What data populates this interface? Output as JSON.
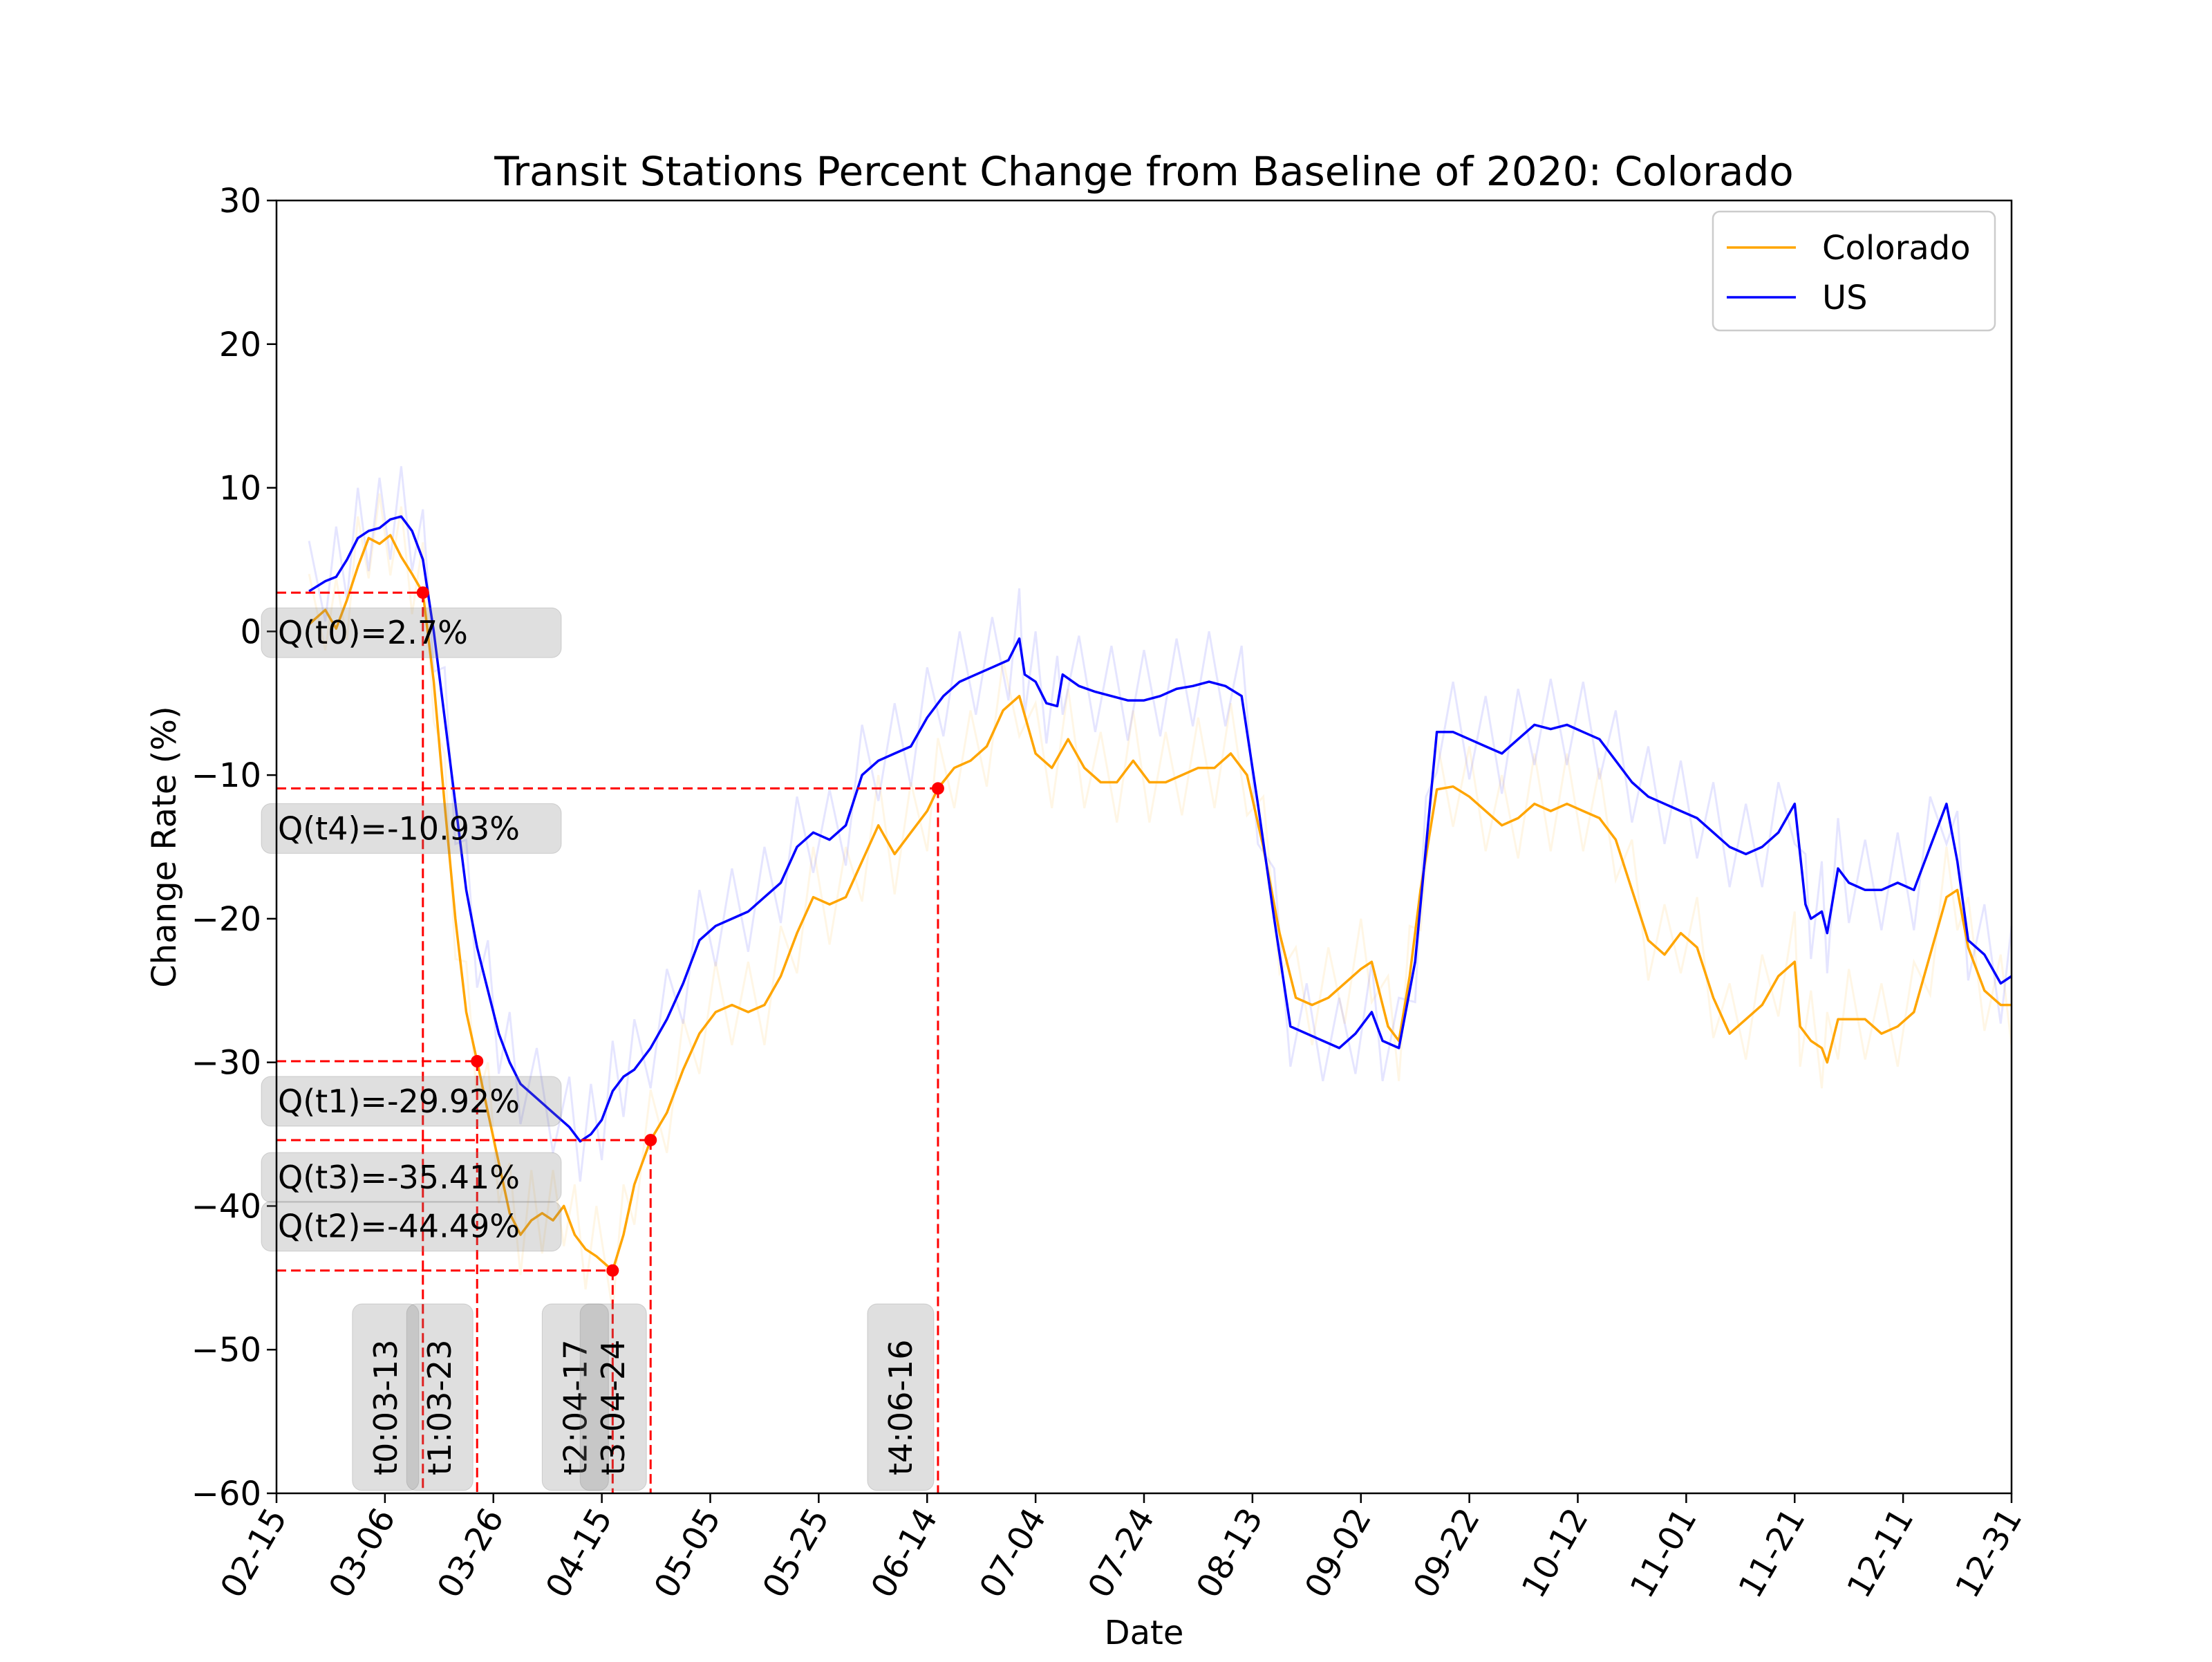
{
  "chart_data": {
    "type": "line",
    "title": "Transit Stations Percent Change from Baseline of 2020: Colorado",
    "xlabel": "Date",
    "ylabel": "Change Rate (%)",
    "xlim": [
      "2020-02-15",
      "2020-12-31"
    ],
    "ylim": [
      -60,
      30
    ],
    "y_ticks": [
      30,
      20,
      10,
      0,
      -10,
      -20,
      -30,
      -40,
      -50,
      -60
    ],
    "x_ticks": [
      {
        "date": "2020-02-15",
        "label": "02-15"
      },
      {
        "date": "2020-03-06",
        "label": "03-06"
      },
      {
        "date": "2020-03-26",
        "label": "03-26"
      },
      {
        "date": "2020-04-15",
        "label": "04-15"
      },
      {
        "date": "2020-05-05",
        "label": "05-05"
      },
      {
        "date": "2020-05-25",
        "label": "05-25"
      },
      {
        "date": "2020-06-14",
        "label": "06-14"
      },
      {
        "date": "2020-07-04",
        "label": "07-04"
      },
      {
        "date": "2020-07-24",
        "label": "07-24"
      },
      {
        "date": "2020-08-13",
        "label": "08-13"
      },
      {
        "date": "2020-09-02",
        "label": "09-02"
      },
      {
        "date": "2020-09-22",
        "label": "09-22"
      },
      {
        "date": "2020-10-12",
        "label": "10-12"
      },
      {
        "date": "2020-11-01",
        "label": "11-01"
      },
      {
        "date": "2020-11-21",
        "label": "11-21"
      },
      {
        "date": "2020-12-11",
        "label": "12-11"
      },
      {
        "date": "2020-12-31",
        "label": "12-31"
      }
    ],
    "grid": false,
    "legend_position": "top-right",
    "series": [
      {
        "name": "Colorado",
        "color": "#ffa500",
        "points": [
          [
            "2020-02-21",
            0.5
          ],
          [
            "2020-02-24",
            1.5
          ],
          [
            "2020-02-26",
            0.2
          ],
          [
            "2020-02-28",
            2.2
          ],
          [
            "2020-03-01",
            4.5
          ],
          [
            "2020-03-03",
            6.5
          ],
          [
            "2020-03-05",
            6.1
          ],
          [
            "2020-03-07",
            6.7
          ],
          [
            "2020-03-09",
            5.2
          ],
          [
            "2020-03-11",
            4.0
          ],
          [
            "2020-03-13",
            2.7
          ],
          [
            "2020-03-15",
            -3.5
          ],
          [
            "2020-03-17",
            -12.0
          ],
          [
            "2020-03-19",
            -20.0
          ],
          [
            "2020-03-21",
            -26.5
          ],
          [
            "2020-03-23",
            -29.92
          ],
          [
            "2020-03-25",
            -33.5
          ],
          [
            "2020-03-27",
            -37.0
          ],
          [
            "2020-03-29",
            -40.5
          ],
          [
            "2020-03-31",
            -42.0
          ],
          [
            "2020-04-02",
            -41.0
          ],
          [
            "2020-04-04",
            -40.5
          ],
          [
            "2020-04-06",
            -41.0
          ],
          [
            "2020-04-08",
            -40.0
          ],
          [
            "2020-04-10",
            -42.0
          ],
          [
            "2020-04-12",
            -43.0
          ],
          [
            "2020-04-14",
            -43.5
          ],
          [
            "2020-04-17",
            -44.49
          ],
          [
            "2020-04-19",
            -42.0
          ],
          [
            "2020-04-21",
            -38.5
          ],
          [
            "2020-04-24",
            -35.41
          ],
          [
            "2020-04-27",
            -33.5
          ],
          [
            "2020-04-30",
            -30.5
          ],
          [
            "2020-05-03",
            -28.0
          ],
          [
            "2020-05-06",
            -26.5
          ],
          [
            "2020-05-09",
            -26.0
          ],
          [
            "2020-05-12",
            -26.5
          ],
          [
            "2020-05-15",
            -26.0
          ],
          [
            "2020-05-18",
            -24.0
          ],
          [
            "2020-05-21",
            -21.0
          ],
          [
            "2020-05-24",
            -18.5
          ],
          [
            "2020-05-27",
            -19.0
          ],
          [
            "2020-05-30",
            -18.5
          ],
          [
            "2020-06-02",
            -16.0
          ],
          [
            "2020-06-05",
            -13.5
          ],
          [
            "2020-06-08",
            -15.5
          ],
          [
            "2020-06-11",
            -14.0
          ],
          [
            "2020-06-14",
            -12.5
          ],
          [
            "2020-06-16",
            -10.93
          ],
          [
            "2020-06-19",
            -9.5
          ],
          [
            "2020-06-22",
            -9.0
          ],
          [
            "2020-06-25",
            -8.0
          ],
          [
            "2020-06-28",
            -5.5
          ],
          [
            "2020-07-01",
            -4.5
          ],
          [
            "2020-07-04",
            -8.5
          ],
          [
            "2020-07-07",
            -9.5
          ],
          [
            "2020-07-10",
            -7.5
          ],
          [
            "2020-07-13",
            -9.5
          ],
          [
            "2020-07-16",
            -10.5
          ],
          [
            "2020-07-19",
            -10.5
          ],
          [
            "2020-07-22",
            -9.0
          ],
          [
            "2020-07-25",
            -10.5
          ],
          [
            "2020-07-28",
            -10.5
          ],
          [
            "2020-07-31",
            -10.0
          ],
          [
            "2020-08-03",
            -9.5
          ],
          [
            "2020-08-06",
            -9.5
          ],
          [
            "2020-08-09",
            -8.5
          ],
          [
            "2020-08-12",
            -10.0
          ],
          [
            "2020-08-15",
            -15.0
          ],
          [
            "2020-08-18",
            -21.0
          ],
          [
            "2020-08-21",
            -25.5
          ],
          [
            "2020-08-24",
            -26.0
          ],
          [
            "2020-08-27",
            -25.5
          ],
          [
            "2020-08-30",
            -24.5
          ],
          [
            "2020-09-02",
            -23.5
          ],
          [
            "2020-09-04",
            -23.0
          ],
          [
            "2020-09-07",
            -27.5
          ],
          [
            "2020-09-09",
            -28.5
          ],
          [
            "2020-09-11",
            -24.0
          ],
          [
            "2020-09-13",
            -18.0
          ],
          [
            "2020-09-16",
            -11.0
          ],
          [
            "2020-09-19",
            -10.8
          ],
          [
            "2020-09-22",
            -11.5
          ],
          [
            "2020-09-25",
            -12.5
          ],
          [
            "2020-09-28",
            -13.5
          ],
          [
            "2020-10-01",
            -13.0
          ],
          [
            "2020-10-04",
            -12.0
          ],
          [
            "2020-10-07",
            -12.5
          ],
          [
            "2020-10-10",
            -12.0
          ],
          [
            "2020-10-13",
            -12.5
          ],
          [
            "2020-10-16",
            -13.0
          ],
          [
            "2020-10-19",
            -14.5
          ],
          [
            "2020-10-22",
            -18.0
          ],
          [
            "2020-10-25",
            -21.5
          ],
          [
            "2020-10-28",
            -22.5
          ],
          [
            "2020-10-31",
            -21.0
          ],
          [
            "2020-11-03",
            -22.0
          ],
          [
            "2020-11-06",
            -25.5
          ],
          [
            "2020-11-09",
            -28.0
          ],
          [
            "2020-11-12",
            -27.0
          ],
          [
            "2020-11-15",
            -26.0
          ],
          [
            "2020-11-18",
            -24.0
          ],
          [
            "2020-11-21",
            -23.0
          ],
          [
            "2020-11-22",
            -27.5
          ],
          [
            "2020-11-24",
            -28.5
          ],
          [
            "2020-11-26",
            -29.0
          ],
          [
            "2020-11-27",
            -30.0
          ],
          [
            "2020-11-29",
            -27.0
          ],
          [
            "2020-12-01",
            -27.0
          ],
          [
            "2020-12-04",
            -27.0
          ],
          [
            "2020-12-07",
            -28.0
          ],
          [
            "2020-12-10",
            -27.5
          ],
          [
            "2020-12-13",
            -26.5
          ],
          [
            "2020-12-16",
            -22.5
          ],
          [
            "2020-12-19",
            -18.5
          ],
          [
            "2020-12-21",
            -18.0
          ],
          [
            "2020-12-23",
            -22.0
          ],
          [
            "2020-12-26",
            -25.0
          ],
          [
            "2020-12-29",
            -26.0
          ],
          [
            "2020-12-31",
            -26.0
          ]
        ]
      },
      {
        "name": "US",
        "color": "#0000ff",
        "points": [
          [
            "2020-02-21",
            2.8
          ],
          [
            "2020-02-24",
            3.5
          ],
          [
            "2020-02-26",
            3.8
          ],
          [
            "2020-02-28",
            5.0
          ],
          [
            "2020-03-01",
            6.5
          ],
          [
            "2020-03-03",
            7.0
          ],
          [
            "2020-03-05",
            7.2
          ],
          [
            "2020-03-07",
            7.8
          ],
          [
            "2020-03-09",
            8.0
          ],
          [
            "2020-03-11",
            7.0
          ],
          [
            "2020-03-13",
            5.0
          ],
          [
            "2020-03-15",
            0.0
          ],
          [
            "2020-03-17",
            -6.0
          ],
          [
            "2020-03-19",
            -12.0
          ],
          [
            "2020-03-21",
            -18.0
          ],
          [
            "2020-03-23",
            -22.0
          ],
          [
            "2020-03-25",
            -25.0
          ],
          [
            "2020-03-27",
            -28.0
          ],
          [
            "2020-03-29",
            -30.0
          ],
          [
            "2020-03-31",
            -31.5
          ],
          [
            "2020-04-03",
            -32.5
          ],
          [
            "2020-04-06",
            -33.5
          ],
          [
            "2020-04-09",
            -34.5
          ],
          [
            "2020-04-11",
            -35.5
          ],
          [
            "2020-04-13",
            -35.0
          ],
          [
            "2020-04-15",
            -34.0
          ],
          [
            "2020-04-17",
            -32.0
          ],
          [
            "2020-04-19",
            -31.0
          ],
          [
            "2020-04-21",
            -30.5
          ],
          [
            "2020-04-24",
            -29.0
          ],
          [
            "2020-04-27",
            -27.0
          ],
          [
            "2020-04-30",
            -24.5
          ],
          [
            "2020-05-03",
            -21.5
          ],
          [
            "2020-05-06",
            -20.5
          ],
          [
            "2020-05-09",
            -20.0
          ],
          [
            "2020-05-12",
            -19.5
          ],
          [
            "2020-05-15",
            -18.5
          ],
          [
            "2020-05-18",
            -17.5
          ],
          [
            "2020-05-21",
            -15.0
          ],
          [
            "2020-05-24",
            -14.0
          ],
          [
            "2020-05-27",
            -14.5
          ],
          [
            "2020-05-30",
            -13.5
          ],
          [
            "2020-06-02",
            -10.0
          ],
          [
            "2020-06-05",
            -9.0
          ],
          [
            "2020-06-08",
            -8.5
          ],
          [
            "2020-06-11",
            -8.0
          ],
          [
            "2020-06-14",
            -6.0
          ],
          [
            "2020-06-17",
            -4.5
          ],
          [
            "2020-06-20",
            -3.5
          ],
          [
            "2020-06-23",
            -3.0
          ],
          [
            "2020-06-26",
            -2.5
          ],
          [
            "2020-06-29",
            -2.0
          ],
          [
            "2020-07-01",
            -0.5
          ],
          [
            "2020-07-02",
            -3.0
          ],
          [
            "2020-07-04",
            -3.5
          ],
          [
            "2020-07-06",
            -5.0
          ],
          [
            "2020-07-08",
            -5.2
          ],
          [
            "2020-07-09",
            -3.0
          ],
          [
            "2020-07-12",
            -3.8
          ],
          [
            "2020-07-15",
            -4.2
          ],
          [
            "2020-07-18",
            -4.5
          ],
          [
            "2020-07-21",
            -4.8
          ],
          [
            "2020-07-24",
            -4.8
          ],
          [
            "2020-07-27",
            -4.5
          ],
          [
            "2020-07-30",
            -4.0
          ],
          [
            "2020-08-02",
            -3.8
          ],
          [
            "2020-08-05",
            -3.5
          ],
          [
            "2020-08-08",
            -3.8
          ],
          [
            "2020-08-11",
            -4.5
          ],
          [
            "2020-08-14",
            -12.0
          ],
          [
            "2020-08-17",
            -20.0
          ],
          [
            "2020-08-20",
            -27.5
          ],
          [
            "2020-08-23",
            -28.0
          ],
          [
            "2020-08-26",
            -28.5
          ],
          [
            "2020-08-29",
            -29.0
          ],
          [
            "2020-09-01",
            -28.0
          ],
          [
            "2020-09-04",
            -26.5
          ],
          [
            "2020-09-06",
            -28.5
          ],
          [
            "2020-09-09",
            -29.0
          ],
          [
            "2020-09-12",
            -23.0
          ],
          [
            "2020-09-14",
            -15.0
          ],
          [
            "2020-09-16",
            -7.0
          ],
          [
            "2020-09-19",
            -7.0
          ],
          [
            "2020-09-22",
            -7.5
          ],
          [
            "2020-09-25",
            -8.0
          ],
          [
            "2020-09-28",
            -8.5
          ],
          [
            "2020-10-01",
            -7.5
          ],
          [
            "2020-10-04",
            -6.5
          ],
          [
            "2020-10-07",
            -6.8
          ],
          [
            "2020-10-10",
            -6.5
          ],
          [
            "2020-10-13",
            -7.0
          ],
          [
            "2020-10-16",
            -7.5
          ],
          [
            "2020-10-19",
            -9.0
          ],
          [
            "2020-10-22",
            -10.5
          ],
          [
            "2020-10-25",
            -11.5
          ],
          [
            "2020-10-28",
            -12.0
          ],
          [
            "2020-10-31",
            -12.5
          ],
          [
            "2020-11-03",
            -13.0
          ],
          [
            "2020-11-06",
            -14.0
          ],
          [
            "2020-11-09",
            -15.0
          ],
          [
            "2020-11-12",
            -15.5
          ],
          [
            "2020-11-15",
            -15.0
          ],
          [
            "2020-11-18",
            -14.0
          ],
          [
            "2020-11-21",
            -12.0
          ],
          [
            "2020-11-23",
            -19.0
          ],
          [
            "2020-11-24",
            -20.0
          ],
          [
            "2020-11-26",
            -19.5
          ],
          [
            "2020-11-27",
            -21.0
          ],
          [
            "2020-11-29",
            -16.5
          ],
          [
            "2020-12-01",
            -17.5
          ],
          [
            "2020-12-04",
            -18.0
          ],
          [
            "2020-12-07",
            -18.0
          ],
          [
            "2020-12-10",
            -17.5
          ],
          [
            "2020-12-13",
            -18.0
          ],
          [
            "2020-12-16",
            -15.0
          ],
          [
            "2020-12-19",
            -12.0
          ],
          [
            "2020-12-21",
            -16.0
          ],
          [
            "2020-12-23",
            -21.5
          ],
          [
            "2020-12-26",
            -22.5
          ],
          [
            "2020-12-29",
            -24.5
          ],
          [
            "2020-12-31",
            -24.0
          ]
        ]
      }
    ],
    "key_points": [
      {
        "date": "2020-03-13",
        "value": 2.7,
        "value_label": "Q(t0)=2.7%",
        "date_label": "t0:03-13"
      },
      {
        "date": "2020-03-23",
        "value": -29.92,
        "value_label": "Q(t1)=-29.92%",
        "date_label": "t1:03-23"
      },
      {
        "date": "2020-04-17",
        "value": -44.49,
        "value_label": "Q(t2)=-44.49%",
        "date_label": "t2:04-17"
      },
      {
        "date": "2020-04-24",
        "value": -35.41,
        "value_label": "Q(t3)=-35.41%",
        "date_label": "t3:04-24"
      },
      {
        "date": "2020-06-16",
        "value": -10.93,
        "value_label": "Q(t4)=-10.93%",
        "date_label": "t4:06-16"
      }
    ]
  }
}
